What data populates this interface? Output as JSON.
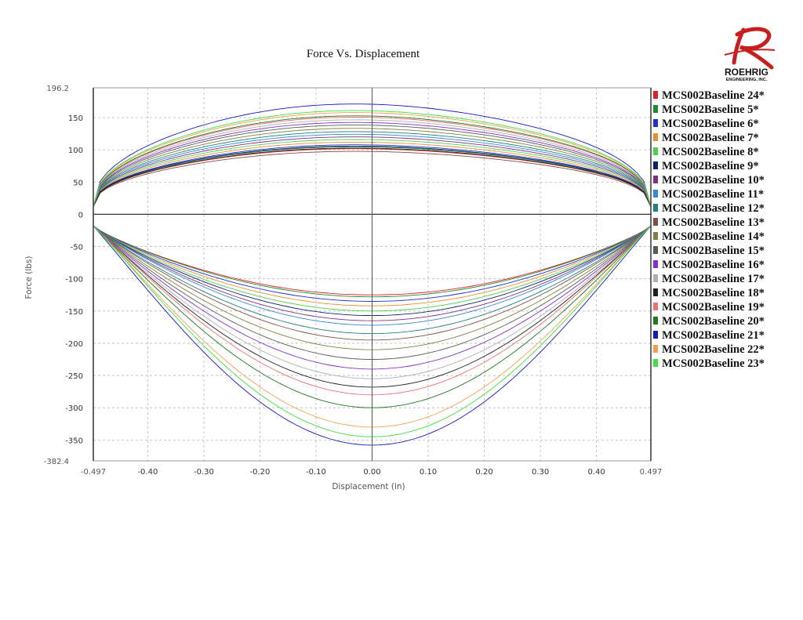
{
  "logo": {
    "name": "ROEHRIG",
    "tagline": "ENGINEERING, INC."
  },
  "chart_data": {
    "type": "line",
    "title": "Force Vs. Displacement",
    "xlabel": "Displacement (in)",
    "ylabel": "Force (lbs)",
    "xlim": [
      -0.497,
      0.497
    ],
    "ylim": [
      -382.4,
      196.2
    ],
    "grid": true,
    "legend_placement": "right",
    "x_ticks": [
      {
        "value": -0.497,
        "label": "-0.497"
      },
      {
        "value": -0.4,
        "label": "-0.40"
      },
      {
        "value": -0.3,
        "label": "-0.30"
      },
      {
        "value": -0.2,
        "label": "-0.20"
      },
      {
        "value": -0.1,
        "label": "-0.10"
      },
      {
        "value": 0.0,
        "label": "0.00"
      },
      {
        "value": 0.1,
        "label": "0.10"
      },
      {
        "value": 0.2,
        "label": "0.20"
      },
      {
        "value": 0.3,
        "label": "0.30"
      },
      {
        "value": 0.4,
        "label": "0.40"
      },
      {
        "value": 0.497,
        "label": "0.497"
      }
    ],
    "y_ticks": [
      {
        "value": 196.2,
        "label": "196.2"
      },
      {
        "value": 150,
        "label": "150"
      },
      {
        "value": 100,
        "label": "100"
      },
      {
        "value": 50,
        "label": "50"
      },
      {
        "value": 0,
        "label": "0"
      },
      {
        "value": -50,
        "label": "-50"
      },
      {
        "value": -100,
        "label": "-100"
      },
      {
        "value": -150,
        "label": "-150"
      },
      {
        "value": -200,
        "label": "-200"
      },
      {
        "value": -250,
        "label": "-250"
      },
      {
        "value": -300,
        "label": "-300"
      },
      {
        "value": -350,
        "label": "-350"
      },
      {
        "value": -382.4,
        "label": "-382.4"
      }
    ],
    "x": [
      -0.497,
      -0.4,
      -0.3,
      -0.2,
      -0.1,
      0.0,
      0.1,
      0.2,
      0.3,
      0.4,
      0.497
    ],
    "series": [
      {
        "name": "MCS002Baseline 24*",
        "color": "#e02020",
        "peak_rebound": 100,
        "peak_compression": -125
      },
      {
        "name": "MCS002Baseline 5*",
        "color": "#208a30",
        "peak_rebound": 103,
        "peak_compression": -128
      },
      {
        "name": "MCS002Baseline 6*",
        "color": "#2030d0",
        "peak_rebound": 106,
        "peak_compression": -135
      },
      {
        "name": "MCS002Baseline 7*",
        "color": "#e89030",
        "peak_rebound": 110,
        "peak_compression": -142
      },
      {
        "name": "MCS002Baseline 8*",
        "color": "#50d050",
        "peak_rebound": 114,
        "peak_compression": -150
      },
      {
        "name": "MCS002Baseline 9*",
        "color": "#102070",
        "peak_rebound": 104,
        "peak_compression": -157
      },
      {
        "name": "MCS002Baseline 10*",
        "color": "#803080",
        "peak_rebound": 118,
        "peak_compression": -165
      },
      {
        "name": "MCS002Baseline 11*",
        "color": "#3088d8",
        "peak_rebound": 122,
        "peak_compression": -172
      },
      {
        "name": "MCS002Baseline 12*",
        "color": "#208080",
        "peak_rebound": 126,
        "peak_compression": -185
      },
      {
        "name": "MCS002Baseline 13*",
        "color": "#805040",
        "peak_rebound": 96,
        "peak_compression": -195
      },
      {
        "name": "MCS002Baseline 14*",
        "color": "#808040",
        "peak_rebound": 131,
        "peak_compression": -210
      },
      {
        "name": "MCS002Baseline 15*",
        "color": "#506050",
        "peak_rebound": 136,
        "peak_compression": -225
      },
      {
        "name": "MCS002Baseline 16*",
        "color": "#8030d0",
        "peak_rebound": 140,
        "peak_compression": -240
      },
      {
        "name": "MCS002Baseline 17*",
        "color": "#b0b0b0",
        "peak_rebound": 144,
        "peak_compression": -255
      },
      {
        "name": "MCS002Baseline 18*",
        "color": "#202020",
        "peak_rebound": 101,
        "peak_compression": -268
      },
      {
        "name": "MCS002Baseline 19*",
        "color": "#f07070",
        "peak_rebound": 148,
        "peak_compression": -280
      },
      {
        "name": "MCS002Baseline 20*",
        "color": "#1e7a1e",
        "peak_rebound": 150,
        "peak_compression": -300
      },
      {
        "name": "MCS002Baseline 21*",
        "color": "#1818c0",
        "peak_rebound": 168,
        "peak_compression": -358
      },
      {
        "name": "MCS002Baseline 22*",
        "color": "#f0a050",
        "peak_rebound": 155,
        "peak_compression": -330
      },
      {
        "name": "MCS002Baseline 23*",
        "color": "#40e040",
        "peak_rebound": 158,
        "peak_compression": -345
      }
    ]
  }
}
